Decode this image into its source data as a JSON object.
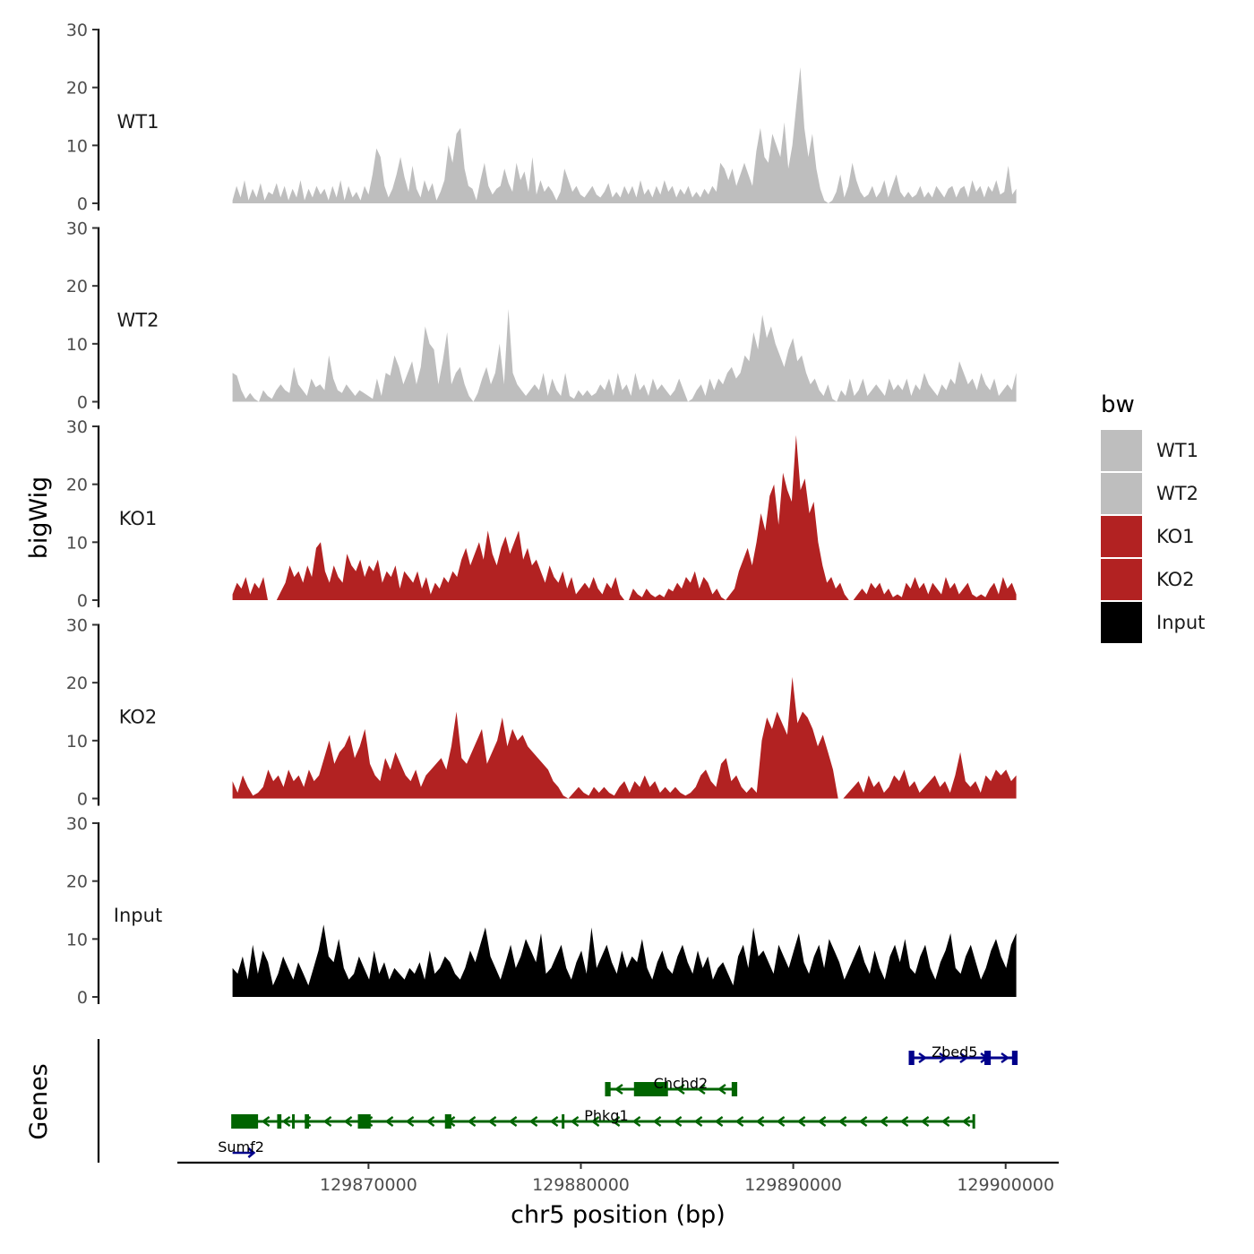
{
  "chart_data": {
    "type": "area",
    "subtype": "genome-browser-tracks",
    "title": "",
    "xlabel": "chr5 position (bp)",
    "ylabel": "bigWig",
    "gene_panel_label": "Genes",
    "xlim": [
      129861000,
      129902500
    ],
    "data_xlim": [
      129863600,
      129900500
    ],
    "ylim": [
      0,
      30
    ],
    "xticks": [
      129870000,
      129880000,
      129890000,
      129900000
    ],
    "xtick_labels": [
      "129870000",
      "129880000",
      "129890000",
      "129900000"
    ],
    "yticks": [
      0,
      10,
      20,
      30
    ],
    "ytick_labels": [
      "0",
      "10",
      "20",
      "30"
    ],
    "legend": {
      "title": "bw",
      "position": "right",
      "entries": [
        {
          "label": "WT1",
          "color": "#bebebe"
        },
        {
          "label": "WT2",
          "color": "#bebebe"
        },
        {
          "label": "KO1",
          "color": "#b22222"
        },
        {
          "label": "KO2",
          "color": "#b22222"
        },
        {
          "label": "Input",
          "color": "#000000"
        }
      ]
    },
    "tracks": [
      {
        "name": "WT1",
        "color": "#bebebe",
        "peak_max": 23.5,
        "values": [
          0.5,
          3,
          1,
          4,
          0.5,
          2.5,
          1,
          3.5,
          0.5,
          2,
          1.5,
          3.5,
          1,
          3,
          0.5,
          2.5,
          1,
          4,
          0.5,
          2.5,
          1,
          3,
          1.5,
          2.5,
          0.5,
          3,
          1,
          4,
          0.5,
          3,
          1,
          2,
          0.5,
          3,
          1.5,
          5,
          9.5,
          8,
          3,
          1,
          2.5,
          5,
          8,
          4.5,
          2,
          6.5,
          2.5,
          1,
          4,
          2,
          3.5,
          0.5,
          2,
          4,
          10,
          7,
          12,
          13,
          6,
          3,
          2.5,
          0.5,
          4,
          7,
          3,
          1.5,
          2.5,
          3,
          6,
          3.5,
          2,
          7,
          4,
          5.5,
          2,
          8,
          1.5,
          4,
          2,
          3,
          2,
          0.5,
          2,
          6,
          4,
          2,
          3,
          1.5,
          1,
          2,
          3,
          1.5,
          1,
          2,
          3.5,
          1,
          2,
          1,
          3,
          1.5,
          3,
          1,
          4,
          1.5,
          2.5,
          1,
          3,
          1.5,
          4,
          2,
          3,
          1,
          2.5,
          1.5,
          3,
          1,
          2,
          1,
          2.5,
          1.5,
          3,
          2,
          7,
          6,
          4,
          6,
          3,
          5,
          7,
          5,
          3,
          9,
          13,
          8,
          7,
          12,
          10,
          8,
          14,
          6,
          10,
          17,
          23.5,
          13,
          8,
          12,
          6,
          2.5,
          0.5,
          0,
          0.5,
          2,
          5,
          1,
          3,
          7,
          4,
          2,
          1,
          1.5,
          3,
          1,
          2,
          4,
          1,
          3,
          5,
          2,
          1,
          2,
          1,
          1.5,
          3,
          1,
          2,
          1,
          3,
          2,
          1,
          2.5,
          3,
          1,
          2.5,
          3,
          1,
          4,
          2,
          3,
          1,
          3,
          2,
          4,
          1.5,
          2,
          6.5,
          1.5,
          2.5
        ]
      },
      {
        "name": "WT2",
        "color": "#bebebe",
        "peak_max": 16,
        "values": [
          5,
          4.5,
          2,
          0.5,
          1.5,
          0.5,
          0,
          2,
          1,
          0.5,
          2,
          3,
          2,
          1.5,
          6,
          3,
          2,
          1,
          4,
          2.5,
          3,
          2,
          8,
          4,
          2,
          1.5,
          3,
          2,
          1,
          2,
          1.5,
          1,
          0.5,
          4,
          1,
          5,
          4.5,
          8,
          6,
          3,
          5,
          7,
          3,
          6,
          13,
          10,
          9,
          3,
          7,
          12,
          3,
          5,
          6,
          3,
          1,
          0,
          1.5,
          4,
          6,
          3,
          5,
          10,
          3,
          16,
          5,
          3,
          2,
          1,
          2,
          3,
          2,
          5,
          1,
          4,
          2,
          1,
          5,
          1,
          0.5,
          2,
          1,
          2,
          1,
          1.5,
          3,
          2,
          4,
          1,
          5,
          2,
          3,
          1,
          5,
          2,
          3,
          1,
          4,
          2,
          3,
          2,
          1,
          2,
          4,
          2,
          0,
          0.5,
          2,
          3,
          1,
          4,
          2,
          4,
          3,
          5,
          6,
          4,
          5,
          8,
          7,
          12,
          9,
          15,
          11,
          13,
          10,
          8,
          6,
          9,
          11,
          7,
          8,
          5,
          3,
          4,
          2,
          1,
          3,
          0.5,
          0,
          2,
          1,
          4,
          1,
          2,
          4,
          1,
          2,
          3,
          2,
          1,
          4,
          2,
          3,
          2,
          4,
          1,
          3,
          2,
          5,
          3,
          2,
          1,
          3,
          2,
          4,
          3,
          7,
          5,
          3,
          4,
          2,
          5,
          3,
          2,
          4,
          1,
          2,
          3,
          2,
          5
        ]
      },
      {
        "name": "KO1",
        "color": "#b22222",
        "peak_max": 28.5,
        "values": [
          1,
          3,
          2,
          4,
          1,
          3,
          2,
          4,
          0,
          0,
          0,
          1.5,
          3,
          6,
          4,
          5,
          3,
          6,
          4,
          9,
          10,
          5,
          3,
          6,
          4,
          3,
          8,
          6,
          5,
          7,
          4,
          6,
          5,
          7,
          3,
          5,
          4,
          6,
          2,
          5,
          4,
          3,
          5,
          2,
          4,
          1,
          3,
          2,
          4,
          3,
          5,
          4,
          7,
          9,
          6,
          8,
          10,
          7,
          12,
          8,
          6,
          9,
          11,
          8,
          10,
          12,
          7,
          9,
          6,
          7,
          5,
          3,
          6,
          4,
          3,
          5,
          2,
          4,
          1,
          2,
          3,
          2,
          4,
          2,
          1,
          3,
          2,
          4,
          1,
          0,
          0,
          2,
          1,
          0.5,
          2,
          1,
          0.5,
          1,
          0.5,
          2,
          1.5,
          3,
          2,
          4,
          3,
          5,
          2,
          4,
          3,
          1,
          2,
          0.5,
          0,
          1,
          2,
          5,
          7,
          9,
          6,
          10,
          15,
          12,
          18,
          20,
          13,
          22,
          19,
          17,
          28.5,
          19,
          21,
          15,
          17,
          10,
          6,
          3,
          4,
          2,
          3,
          1,
          0,
          0,
          1,
          2,
          1,
          3,
          2,
          3,
          1,
          2,
          0.5,
          1,
          0.5,
          3,
          2,
          4,
          2,
          3,
          1,
          3,
          2,
          1,
          4,
          2,
          3,
          1,
          2,
          3,
          1,
          0.5,
          1,
          0.5,
          2,
          3,
          1,
          4,
          2,
          3,
          1
        ]
      },
      {
        "name": "KO2",
        "color": "#b22222",
        "peak_max": 21,
        "values": [
          3,
          1,
          4,
          2,
          0.5,
          1,
          2,
          5,
          3,
          4,
          2,
          5,
          3,
          4,
          2,
          5,
          3,
          4,
          7,
          10,
          6,
          8,
          9,
          11,
          7,
          9,
          12,
          6,
          4,
          3,
          7,
          5,
          8,
          6,
          4,
          3,
          5,
          2,
          4,
          5,
          6,
          7,
          5,
          9,
          15,
          7,
          6,
          8,
          10,
          12,
          6,
          8,
          10,
          14,
          9,
          12,
          10,
          11,
          9,
          8,
          7,
          6,
          5,
          3,
          2,
          0.5,
          0,
          1,
          2,
          1,
          0.5,
          2,
          1,
          2,
          1,
          0.5,
          2,
          3,
          1,
          3,
          2,
          4,
          2,
          3,
          1,
          2,
          1,
          2,
          1,
          0.5,
          1,
          2,
          4,
          5,
          3,
          2,
          6,
          7,
          3,
          4,
          2,
          1,
          2,
          1,
          10,
          14,
          12,
          15,
          13,
          11,
          20,
          13,
          15,
          14,
          12,
          9,
          11,
          8,
          5,
          0,
          0,
          1,
          2,
          3,
          1,
          4,
          2,
          3,
          1,
          2,
          4,
          3,
          5,
          2,
          3,
          1,
          2,
          3,
          4,
          2,
          3,
          1,
          4,
          8,
          3,
          2,
          3,
          1,
          4,
          3,
          5,
          4,
          5,
          3,
          4
        ]
      },
      {
        "name": "Input",
        "color": "#000000",
        "peak_max": 12.5,
        "values": [
          5,
          4,
          7,
          3,
          9,
          4,
          8,
          6,
          2,
          4,
          7,
          5,
          3,
          6,
          4,
          2,
          5,
          8,
          12,
          7,
          6,
          10,
          5,
          3,
          4,
          7,
          5,
          3,
          8,
          4,
          6,
          3,
          5,
          4,
          3,
          5,
          4,
          6,
          3,
          8,
          4,
          5,
          7,
          6,
          4,
          3,
          5,
          8,
          6,
          9,
          12,
          7,
          5,
          3,
          6,
          9,
          5,
          7,
          10,
          8,
          6,
          11,
          4,
          5,
          7,
          9,
          5,
          3,
          6,
          8,
          4,
          12,
          5,
          7,
          9,
          6,
          4,
          8,
          5,
          7,
          6,
          10,
          5,
          3,
          6,
          8,
          5,
          4,
          7,
          9,
          6,
          4,
          8,
          5,
          7,
          3,
          5,
          6,
          4,
          2,
          7,
          9,
          5,
          12,
          7,
          8,
          6,
          4,
          9,
          7,
          5,
          8,
          11,
          6,
          4,
          7,
          9,
          5,
          10,
          8,
          6,
          3,
          5,
          7,
          9,
          6,
          4,
          8,
          5,
          3,
          7,
          9,
          6,
          10,
          5,
          4,
          7,
          9,
          5,
          3,
          6,
          8,
          11,
          5,
          4,
          7,
          9,
          6,
          3,
          5,
          8,
          10,
          7,
          5,
          9,
          11
        ]
      }
    ],
    "genes": [
      {
        "name": "Zbed5",
        "start": 129895500,
        "end": 129900500,
        "strand": "+",
        "color": "#00008b",
        "row": 0,
        "exons": [
          [
            129895500,
            129895700
          ],
          [
            129899000,
            129899300
          ],
          [
            129900300,
            129900500
          ]
        ]
      },
      {
        "name": "Chchd2",
        "start": 129881200,
        "end": 129887300,
        "strand": "-",
        "color": "#006400",
        "row": 1,
        "exons": [
          [
            129881200,
            129881400
          ],
          [
            129882500,
            129884100
          ],
          [
            129887100,
            129887300
          ]
        ]
      },
      {
        "name": "Phkg1",
        "start": 129863600,
        "end": 129898500,
        "strand": "-",
        "color": "#006400",
        "row": 2,
        "exons": [
          [
            129863600,
            129864800
          ],
          [
            129865700,
            129865900
          ],
          [
            129866400,
            129866500
          ],
          [
            129867000,
            129867200
          ],
          [
            129869500,
            129870100
          ],
          [
            129873600,
            129873900
          ],
          [
            129879100,
            129879200
          ]
        ]
      },
      {
        "name": "Sumf2",
        "start": 129863600,
        "end": 129864600,
        "strand": "+",
        "color": "#00008b",
        "row": 3,
        "exons": []
      }
    ]
  }
}
